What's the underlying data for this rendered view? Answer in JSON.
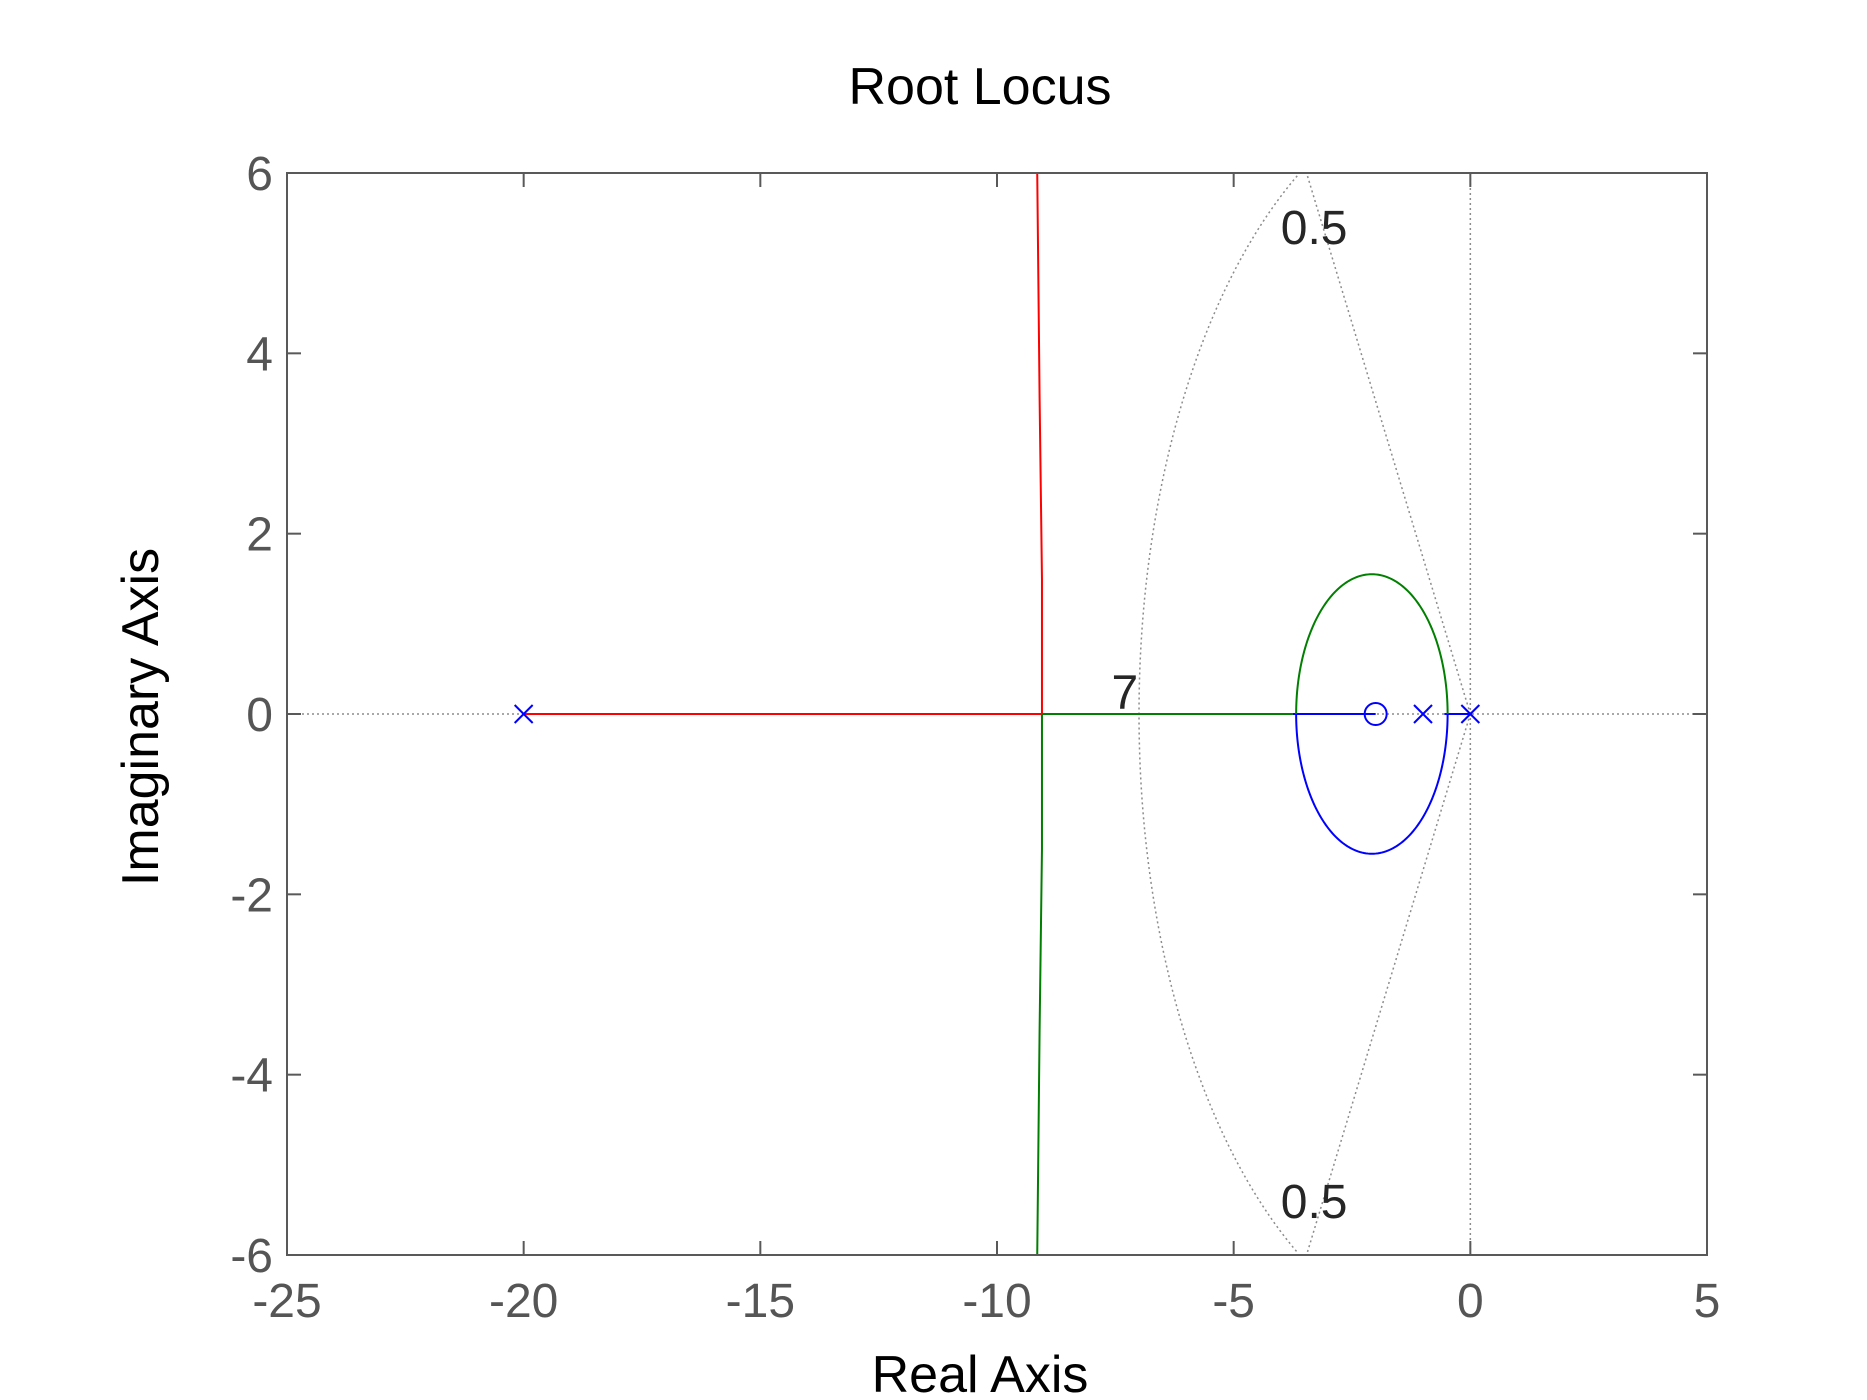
{
  "chart_data": {
    "type": "scatter",
    "title": "Root Locus",
    "xlabel": "Real Axis",
    "ylabel": "Imaginary Axis",
    "xlim": [
      -25,
      5
    ],
    "ylim": [
      -6,
      6
    ],
    "xticks": [
      -25,
      -20,
      -15,
      -10,
      -5,
      0,
      5
    ],
    "yticks": [
      -6,
      -4,
      -2,
      0,
      2,
      4,
      6
    ],
    "xtick_labels": [
      "-25",
      "-20",
      "-15",
      "-10",
      "-5",
      "0",
      "5"
    ],
    "ytick_labels": [
      "-6",
      "-4",
      "-2",
      "0",
      "2",
      "4",
      "6"
    ],
    "grid": false,
    "colors": {
      "red": "#ff0000",
      "green": "#007f00",
      "blue": "#0000ff",
      "grid": "#8c8c8c",
      "frame": "#595959"
    },
    "poles": [
      {
        "x": -20,
        "y": 0
      },
      {
        "x": -1,
        "y": 0
      },
      {
        "x": 0,
        "y": 0
      }
    ],
    "zeros": [
      {
        "x": -2,
        "y": 0
      }
    ],
    "branches": [
      {
        "color": "red",
        "points": [
          [
            -20,
            0
          ],
          [
            -9.05,
            0
          ],
          [
            -9.05,
            1.5
          ],
          [
            -9.1,
            3.5
          ],
          [
            -9.15,
            6
          ]
        ]
      },
      {
        "color": "green",
        "points": [
          [
            -9.05,
            0
          ],
          [
            -3.75,
            0
          ]
        ]
      },
      {
        "color": "green",
        "points": [
          [
            -9.05,
            0
          ],
          [
            -9.05,
            -1.5
          ],
          [
            -9.1,
            -3.5
          ],
          [
            -9.15,
            -6
          ]
        ]
      },
      {
        "color": "blue",
        "points": [
          [
            -3.75,
            0
          ],
          [
            -2,
            0
          ]
        ]
      },
      {
        "color": "blue",
        "points": [
          [
            -0.55,
            0
          ],
          [
            0,
            0
          ]
        ]
      }
    ],
    "ellipse": {
      "cx": -2.08,
      "cy": 0,
      "rx": 1.6,
      "ry": 1.55,
      "upper_color": "green",
      "lower_color": "blue"
    },
    "damping_lines": [
      {
        "label": "0.5",
        "points": [
          [
            0,
            0
          ],
          [
            -3.46,
            6
          ]
        ]
      },
      {
        "label": "0.5",
        "points": [
          [
            0,
            0
          ],
          [
            -3.46,
            -6
          ]
        ]
      }
    ],
    "frequency_curves": [
      {
        "label": "7",
        "radius": 7
      }
    ],
    "annotations": [
      {
        "text": "0.5",
        "x": -3.3,
        "y": 5.4
      },
      {
        "text": "0.5",
        "x": -3.3,
        "y": -5.4
      },
      {
        "text": "7",
        "x": -7.3,
        "y": 0.25
      }
    ]
  }
}
